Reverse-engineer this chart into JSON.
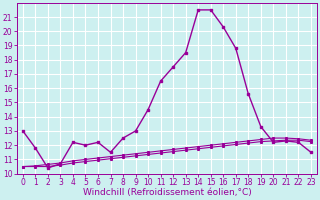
{
  "title": "",
  "xlabel": "Windchill (Refroidissement éolien,°C)",
  "ylabel": "",
  "background_color": "#cdf0f0",
  "grid_color": "#ffffff",
  "line_color": "#990099",
  "x": [
    0,
    1,
    2,
    3,
    4,
    5,
    6,
    7,
    8,
    9,
    10,
    11,
    12,
    13,
    14,
    15,
    16,
    17,
    18,
    19,
    20,
    21,
    22,
    23
  ],
  "line_main": [
    13.0,
    11.8,
    10.4,
    10.7,
    12.2,
    12.0,
    12.2,
    11.5,
    12.5,
    13.0,
    14.5,
    16.5,
    17.5,
    18.5,
    21.5,
    21.5,
    20.3,
    18.8,
    15.6,
    13.3,
    12.2,
    12.3,
    12.2,
    11.5
  ],
  "line_lo1": [
    10.5,
    10.5,
    10.5,
    10.6,
    10.75,
    10.85,
    10.95,
    11.05,
    11.15,
    11.25,
    11.35,
    11.45,
    11.55,
    11.65,
    11.75,
    11.85,
    11.95,
    12.05,
    12.15,
    12.25,
    12.3,
    12.35,
    12.35,
    12.25
  ],
  "line_lo2": [
    10.5,
    10.55,
    10.65,
    10.75,
    10.9,
    11.0,
    11.1,
    11.2,
    11.3,
    11.4,
    11.5,
    11.6,
    11.7,
    11.8,
    11.9,
    12.0,
    12.1,
    12.2,
    12.3,
    12.4,
    12.5,
    12.5,
    12.45,
    12.35
  ],
  "ylim_min": 10,
  "ylim_max": 22,
  "xlim_min": 0,
  "xlim_max": 23,
  "yticks": [
    10,
    11,
    12,
    13,
    14,
    15,
    16,
    17,
    18,
    19,
    20,
    21
  ],
  "xticks": [
    0,
    1,
    2,
    3,
    4,
    5,
    6,
    7,
    8,
    9,
    10,
    11,
    12,
    13,
    14,
    15,
    16,
    17,
    18,
    19,
    20,
    21,
    22,
    23
  ],
  "tick_fontsize": 5.5,
  "xlabel_fontsize": 6.5
}
